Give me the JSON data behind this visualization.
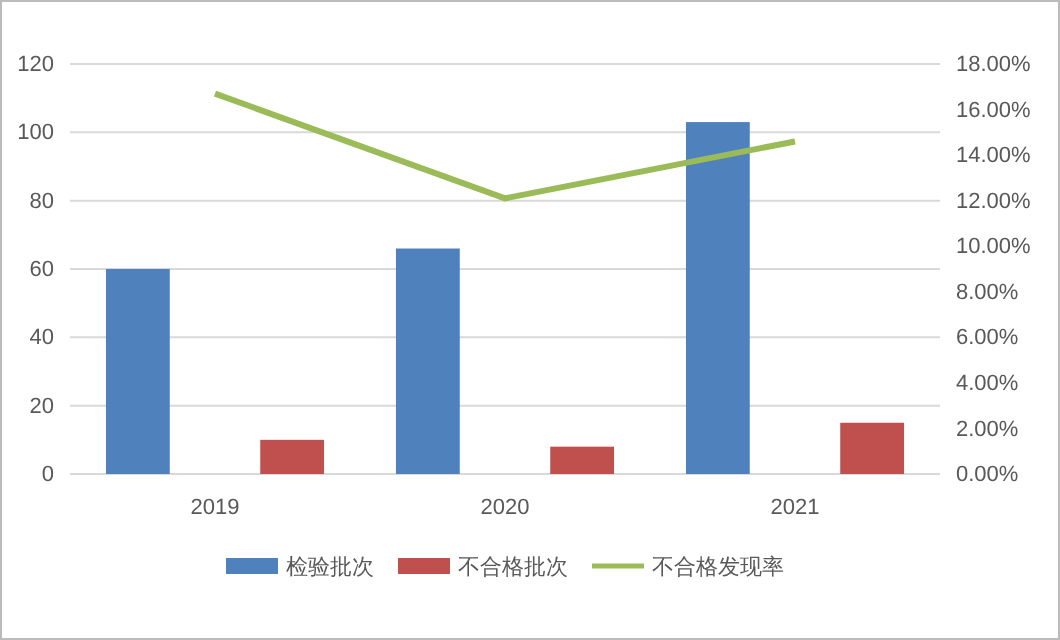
{
  "chart_data": {
    "type": "bar",
    "categories": [
      "2019",
      "2020",
      "2021"
    ],
    "series": [
      {
        "name": "检验批次",
        "color": "#4f81bd",
        "values": [
          60,
          66,
          103
        ]
      },
      {
        "name": "不合格批次",
        "color": "#c0504d",
        "values": [
          10,
          8,
          15
        ]
      },
      {
        "name": "不合格发现率",
        "color": "#9bbb59",
        "type": "line",
        "axis": "y2",
        "values": [
          16.7,
          12.1,
          14.6
        ]
      }
    ],
    "ylim": [
      0,
      120
    ],
    "yticks": [
      0,
      20,
      40,
      60,
      80,
      100,
      120
    ],
    "y2lim": [
      0,
      18
    ],
    "y2ticks": [
      {
        "value": 0,
        "label": "0.00%"
      },
      {
        "value": 2,
        "label": "2.00%"
      },
      {
        "value": 4,
        "label": "4.00%"
      },
      {
        "value": 6,
        "label": "6.00%"
      },
      {
        "value": 8,
        "label": "8.00%"
      },
      {
        "value": 10,
        "label": "10.00%"
      },
      {
        "value": 12,
        "label": "12.00%"
      },
      {
        "value": 14,
        "label": "14.00%"
      },
      {
        "value": 16,
        "label": "16.00%"
      },
      {
        "value": 18,
        "label": "18.00%"
      }
    ],
    "grid": "y",
    "legend": "bottom",
    "marker": "none"
  }
}
